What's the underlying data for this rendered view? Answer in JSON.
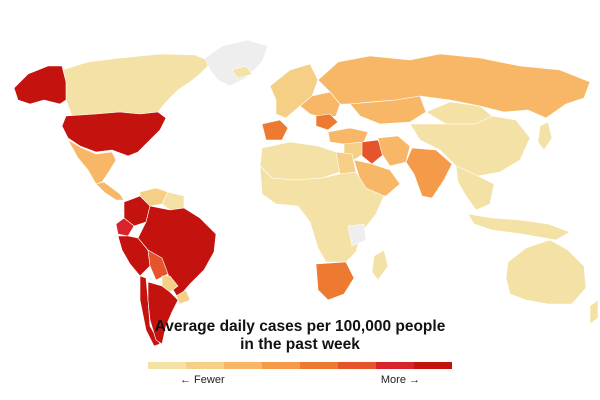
{
  "legend": {
    "title_line1": "Average daily cases per 100,000 people",
    "title_line2": "in the past week",
    "fewer_label": "← Fewer",
    "more_label": "More →",
    "scale_colors": [
      "#f3e1a5",
      "#f6cf86",
      "#f7b766",
      "#f59a49",
      "#ee7a32",
      "#e5542a",
      "#d8232a",
      "#c4120f"
    ],
    "no_data_color": "#eeeeee"
  },
  "countries": [
    {
      "name": "united-states",
      "level": 8
    },
    {
      "name": "alaska",
      "level": 8
    },
    {
      "name": "canada",
      "level": 1
    },
    {
      "name": "greenland",
      "level": 0
    },
    {
      "name": "mexico",
      "level": 3
    },
    {
      "name": "central-america",
      "level": 3
    },
    {
      "name": "colombia",
      "level": 8
    },
    {
      "name": "venezuela",
      "level": 2
    },
    {
      "name": "guianas",
      "level": 1
    },
    {
      "name": "ecuador",
      "level": 7
    },
    {
      "name": "peru",
      "level": 8
    },
    {
      "name": "brazil",
      "level": 8
    },
    {
      "name": "bolivia",
      "level": 6
    },
    {
      "name": "paraguay",
      "level": 2
    },
    {
      "name": "uruguay",
      "level": 2
    },
    {
      "name": "argentina",
      "level": 8
    },
    {
      "name": "chile",
      "level": 8
    },
    {
      "name": "iceland",
      "level": 1
    },
    {
      "name": "western-europe",
      "level": 2
    },
    {
      "name": "spain",
      "level": 5
    },
    {
      "name": "eastern-europe",
      "level": 3
    },
    {
      "name": "romania",
      "level": 5
    },
    {
      "name": "russia",
      "level": 3
    },
    {
      "name": "kazakhstan",
      "level": 3
    },
    {
      "name": "turkey",
      "level": 3
    },
    {
      "name": "middle-east",
      "level": 2
    },
    {
      "name": "saudi-arabia",
      "level": 3
    },
    {
      "name": "iraq",
      "level": 6
    },
    {
      "name": "iran",
      "level": 3
    },
    {
      "name": "india",
      "level": 4
    },
    {
      "name": "north-africa",
      "level": 1
    },
    {
      "name": "egypt",
      "level": 2
    },
    {
      "name": "sub-saharan-africa",
      "level": 1
    },
    {
      "name": "ethiopia",
      "level": 0
    },
    {
      "name": "southern-africa",
      "level": 5
    },
    {
      "name": "madagascar",
      "level": 1
    },
    {
      "name": "china",
      "level": 1
    },
    {
      "name": "mongolia",
      "level": 1
    },
    {
      "name": "southeast-asia",
      "level": 1
    },
    {
      "name": "indonesia",
      "level": 1
    },
    {
      "name": "japan",
      "level": 1
    },
    {
      "name": "australia",
      "level": 1
    },
    {
      "name": "new-zealand",
      "level": 1
    }
  ]
}
